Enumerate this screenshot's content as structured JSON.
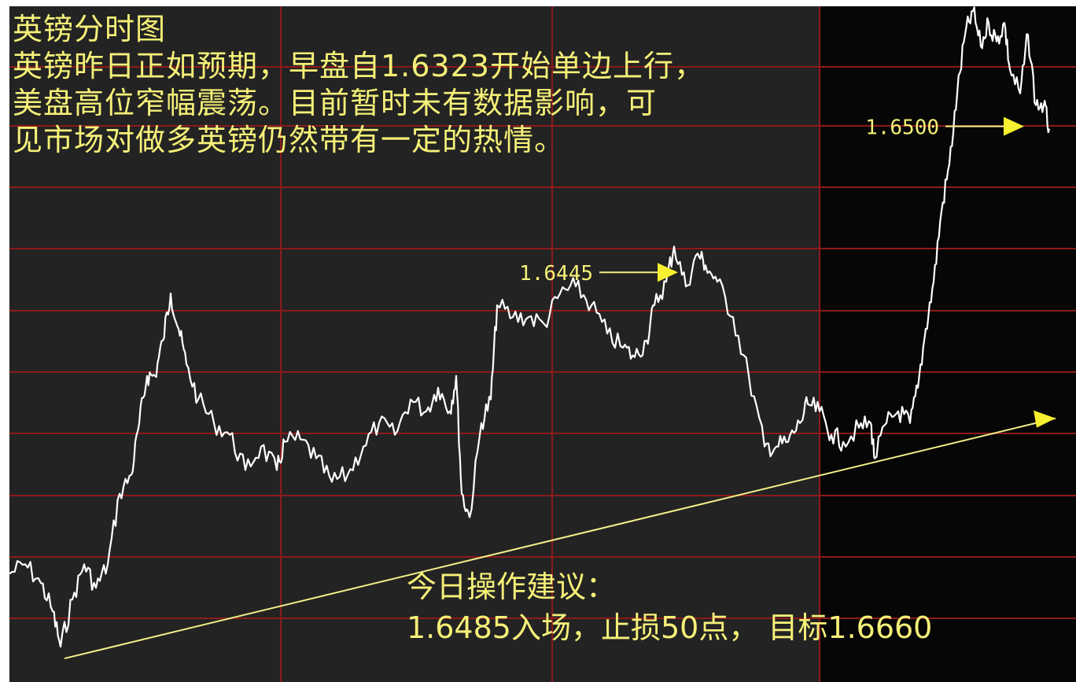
{
  "header": {
    "title": "英镑分时图",
    "lines": [
      "英镑昨日正如预期，早盘自1.6323开始单边上行，",
      "美盘高位窄幅震荡。目前暂时未有数据影响，可",
      "见市场对做多英镑仍然带有一定的热情。"
    ]
  },
  "advice": {
    "heading": "今日操作建议：",
    "text": "1.6485入场，止损50点， 目标1.6660"
  },
  "chart_data": {
    "type": "line",
    "series": [
      {
        "points": [
          [
            0,
            1.6356
          ],
          [
            20,
            1.636
          ],
          [
            40,
            1.6352
          ],
          [
            55,
            1.634
          ],
          [
            65,
            1.6325
          ],
          [
            80,
            1.6345
          ],
          [
            95,
            1.636
          ],
          [
            110,
            1.635
          ],
          [
            125,
            1.636
          ],
          [
            140,
            1.639
          ],
          [
            155,
            1.6398
          ],
          [
            165,
            1.642
          ],
          [
            175,
            1.644
          ],
          [
            185,
            1.644
          ],
          [
            195,
            1.6455
          ],
          [
            205,
            1.6475
          ],
          [
            215,
            1.646
          ],
          [
            225,
            1.6445
          ],
          [
            240,
            1.643
          ],
          [
            260,
            1.642
          ],
          [
            280,
            1.6415
          ],
          [
            300,
            1.64
          ],
          [
            320,
            1.641
          ],
          [
            340,
            1.64
          ],
          [
            350,
            1.6412
          ],
          [
            370,
            1.6413
          ],
          [
            390,
            1.6405
          ],
          [
            410,
            1.6395
          ],
          [
            430,
            1.6398
          ],
          [
            450,
            1.641
          ],
          [
            470,
            1.642
          ],
          [
            490,
            1.6415
          ],
          [
            510,
            1.643
          ],
          [
            530,
            1.6425
          ],
          [
            545,
            1.6435
          ],
          [
            560,
            1.6425
          ],
          [
            568,
            1.644
          ],
          [
            575,
            1.639
          ],
          [
            585,
            1.638
          ],
          [
            600,
            1.642
          ],
          [
            612,
            1.643
          ],
          [
            620,
            1.647
          ],
          [
            640,
            1.6465
          ],
          [
            660,
            1.6465
          ],
          [
            680,
            1.6462
          ],
          [
            700,
            1.6475
          ],
          [
            720,
            1.6478
          ],
          [
            740,
            1.647
          ],
          [
            760,
            1.6458
          ],
          [
            780,
            1.6452
          ],
          [
            795,
            1.6448
          ],
          [
            810,
            1.6455
          ],
          [
            820,
            1.647
          ],
          [
            835,
            1.648
          ],
          [
            845,
            1.6495
          ],
          [
            860,
            1.6478
          ],
          [
            875,
            1.6492
          ],
          [
            885,
            1.6487
          ],
          [
            900,
            1.648
          ],
          [
            920,
            1.6465
          ],
          [
            940,
            1.644
          ],
          [
            960,
            1.641
          ],
          [
            975,
            1.641
          ],
          [
            990,
            1.6412
          ],
          [
            1005,
            1.642
          ],
          [
            1015,
            1.6428
          ],
          [
            1030,
            1.6425
          ],
          [
            1045,
            1.6415
          ],
          [
            1060,
            1.6412
          ],
          [
            1080,
            1.6418
          ],
          [
            1095,
            1.642
          ],
          [
            1100,
            1.6405
          ],
          [
            1115,
            1.642
          ],
          [
            1130,
            1.6425
          ],
          [
            1145,
            1.642
          ],
          [
            1155,
            1.6435
          ],
          [
            1165,
            1.646
          ],
          [
            1175,
            1.648
          ],
          [
            1185,
            1.651
          ],
          [
            1195,
            1.653
          ],
          [
            1205,
            1.656
          ],
          [
            1215,
            1.6585
          ],
          [
            1225,
            1.6595
          ],
          [
            1235,
            1.658
          ],
          [
            1245,
            1.659
          ],
          [
            1255,
            1.6582
          ],
          [
            1265,
            1.659
          ],
          [
            1272,
            1.657
          ],
          [
            1285,
            1.656
          ],
          [
            1295,
            1.6585
          ],
          [
            1305,
            1.6555
          ],
          [
            1315,
            1.6555
          ],
          [
            1322,
            1.6545
          ]
        ]
      }
    ],
    "trendline": {
      "from": [
        70,
        1.632
      ],
      "to": [
        1330,
        1.6422
      ]
    },
    "annotations": [
      {
        "label": "1.6445",
        "at": [
          850,
          1.6484
        ]
      },
      {
        "label": "1.6500",
        "at": [
          1290,
          1.6546
        ]
      }
    ],
    "ylim": [
      1.631,
      1.6597
    ],
    "xlim": [
      0,
      1356
    ],
    "grid": true
  },
  "colors": {
    "background_session1": "#232323",
    "background_session2": "#060606",
    "grid": "#8e1a1a",
    "price_line": "#ffffff",
    "trendline": "#f3ef8a",
    "text": "#f5f078"
  }
}
